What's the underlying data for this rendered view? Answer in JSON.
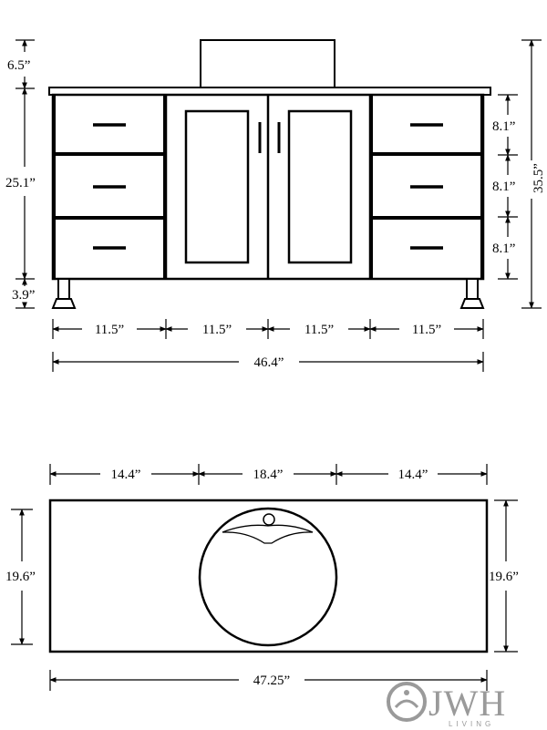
{
  "front_view": {
    "heights": {
      "basin": "6.5”",
      "cabinet": "25.1”",
      "legs": "3.9”",
      "overall": "35.5”",
      "drawer_top": "8.1”",
      "drawer_middle": "8.1”",
      "drawer_bottom": "8.1”"
    },
    "widths": {
      "left_drawers": "11.5”",
      "left_door": "11.5”",
      "right_door": "11.5”",
      "right_drawers": "11.5”",
      "overall": "46.4”"
    }
  },
  "top_view": {
    "widths": {
      "left": "14.4”",
      "sink": "18.4”",
      "right": "14.4”",
      "overall": "47.25”"
    },
    "depth_left": "19.6”",
    "depth_right": "19.6”"
  },
  "logo": {
    "main": "JWH",
    "sub": "LIVING"
  }
}
